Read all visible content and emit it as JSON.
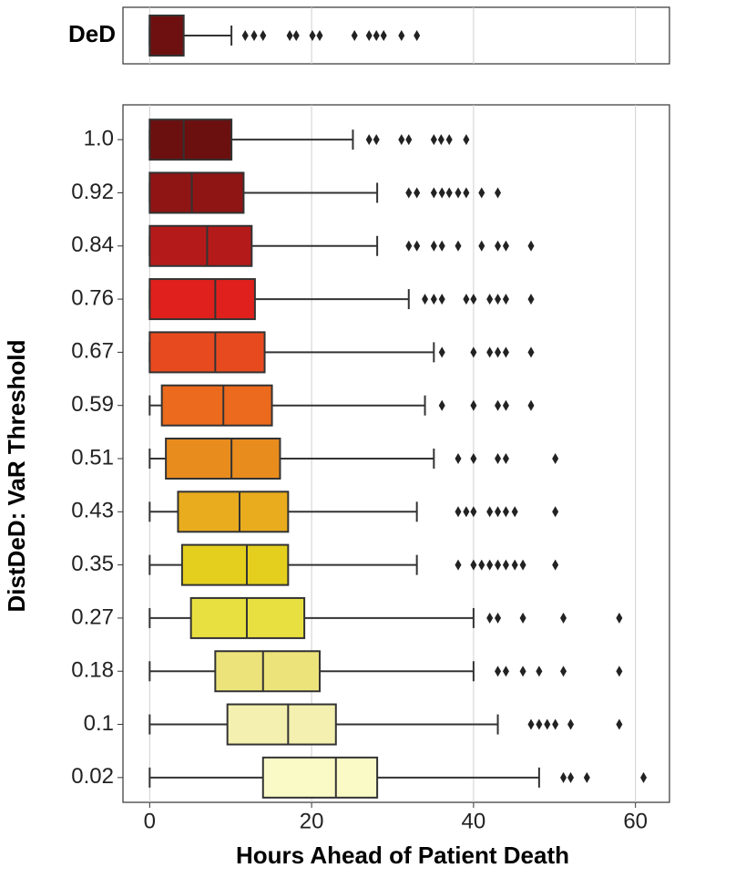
{
  "chart_data": [
    {
      "type": "box",
      "categories": [
        "DeD"
      ],
      "colors": [
        "#6e1010"
      ],
      "boxes": [
        {
          "whislo": 0,
          "q1": 0,
          "med": 0,
          "q3": 4.2,
          "whishi": 10.1,
          "fliers": [
            11.8,
            12.9,
            14.0,
            17.3,
            18.1,
            20.1,
            21.0,
            25.3,
            27.1,
            28.0,
            28.9,
            31.1,
            33.0
          ]
        }
      ],
      "xlim": [
        -3.3,
        64.2
      ],
      "xticks": [
        0,
        20,
        40,
        60
      ],
      "grid": true
    },
    {
      "type": "box",
      "ylabel": "DistDeD: VaR Threshold",
      "xlabel": "Hours Ahead of Patient Death",
      "categories": [
        "1.0",
        "0.92",
        "0.84",
        "0.76",
        "0.67",
        "0.59",
        "0.51",
        "0.43",
        "0.35",
        "0.27",
        "0.18",
        "0.1",
        "0.02"
      ],
      "colors": [
        "#6b0f0f",
        "#8f1414",
        "#b51a1a",
        "#e0201c",
        "#e84a20",
        "#ec6a1e",
        "#e88c1e",
        "#e8ac1e",
        "#e4cf1e",
        "#e8e040",
        "#ece37a",
        "#f3f0b0",
        "#fafac6"
      ],
      "boxes": [
        {
          "whislo": 0,
          "q1": 0,
          "med": 4.2,
          "q3": 10.1,
          "whishi": 25.1,
          "fliers": [
            27.1,
            28.0,
            31.1,
            32.0,
            35.1,
            36.0,
            37.0,
            39.1
          ]
        },
        {
          "whislo": 0,
          "q1": 0,
          "med": 5.2,
          "q3": 11.6,
          "whishi": 28.1,
          "fliers": [
            32.0,
            33.0,
            35.1,
            36.1,
            37.0,
            38.1,
            39.1,
            41.0,
            43.0
          ]
        },
        {
          "whislo": 0,
          "q1": 0,
          "med": 7.1,
          "q3": 12.6,
          "whishi": 28.1,
          "fliers": [
            32.0,
            33.0,
            35.1,
            36.1,
            38.1,
            41.0,
            43.0,
            44.0,
            47.1
          ]
        },
        {
          "whislo": 0,
          "q1": 0,
          "med": 8.1,
          "q3": 13.0,
          "whishi": 32.0,
          "fliers": [
            34.0,
            35.1,
            36.1,
            39.1,
            40.0,
            42.0,
            43.0,
            44.0,
            47.1
          ]
        },
        {
          "whislo": 0,
          "q1": 0,
          "med": 8.1,
          "q3": 14.2,
          "whishi": 35.1,
          "fliers": [
            36.1,
            40.0,
            42.0,
            43.0,
            44.0,
            47.1
          ]
        },
        {
          "whislo": 0,
          "q1": 1.5,
          "med": 9.1,
          "q3": 15.1,
          "whishi": 34.0,
          "fliers": [
            36.1,
            40.0,
            43.0,
            44.0,
            47.1
          ]
        },
        {
          "whislo": 0,
          "q1": 2.0,
          "med": 10.1,
          "q3": 16.1,
          "whishi": 35.1,
          "fliers": [
            38.1,
            40.0,
            43.0,
            44.0,
            50.1
          ]
        },
        {
          "whislo": 0,
          "q1": 3.5,
          "med": 11.1,
          "q3": 17.1,
          "whishi": 33.0,
          "fliers": [
            38.1,
            39.1,
            40.0,
            42.0,
            43.0,
            44.0,
            45.1,
            50.1
          ]
        },
        {
          "whislo": 0,
          "q1": 4.0,
          "med": 12.0,
          "q3": 17.1,
          "whishi": 33.0,
          "fliers": [
            38.1,
            40.0,
            41.0,
            42.0,
            43.0,
            44.0,
            45.1,
            46.1,
            50.1
          ]
        },
        {
          "whislo": 0,
          "q1": 5.1,
          "med": 12.0,
          "q3": 19.1,
          "whishi": 40.0,
          "fliers": [
            42.0,
            43.0,
            46.1,
            51.1,
            58.0
          ]
        },
        {
          "whislo": 0,
          "q1": 8.1,
          "med": 14.0,
          "q3": 21.0,
          "whishi": 40.0,
          "fliers": [
            43.0,
            44.0,
            46.1,
            48.1,
            51.1,
            58.0
          ]
        },
        {
          "whislo": 0,
          "q1": 9.6,
          "med": 17.1,
          "q3": 23.0,
          "whishi": 43.0,
          "fliers": [
            47.1,
            48.1,
            49.1,
            50.1,
            52.0,
            58.0
          ]
        },
        {
          "whislo": 0,
          "q1": 14.0,
          "med": 23.0,
          "q3": 28.1,
          "whishi": 48.1,
          "fliers": [
            51.1,
            52.0,
            54.0,
            61.0
          ]
        }
      ],
      "xlim": [
        -3.3,
        64.2
      ],
      "xticks": [
        0,
        20,
        40,
        60
      ],
      "grid": true
    }
  ]
}
